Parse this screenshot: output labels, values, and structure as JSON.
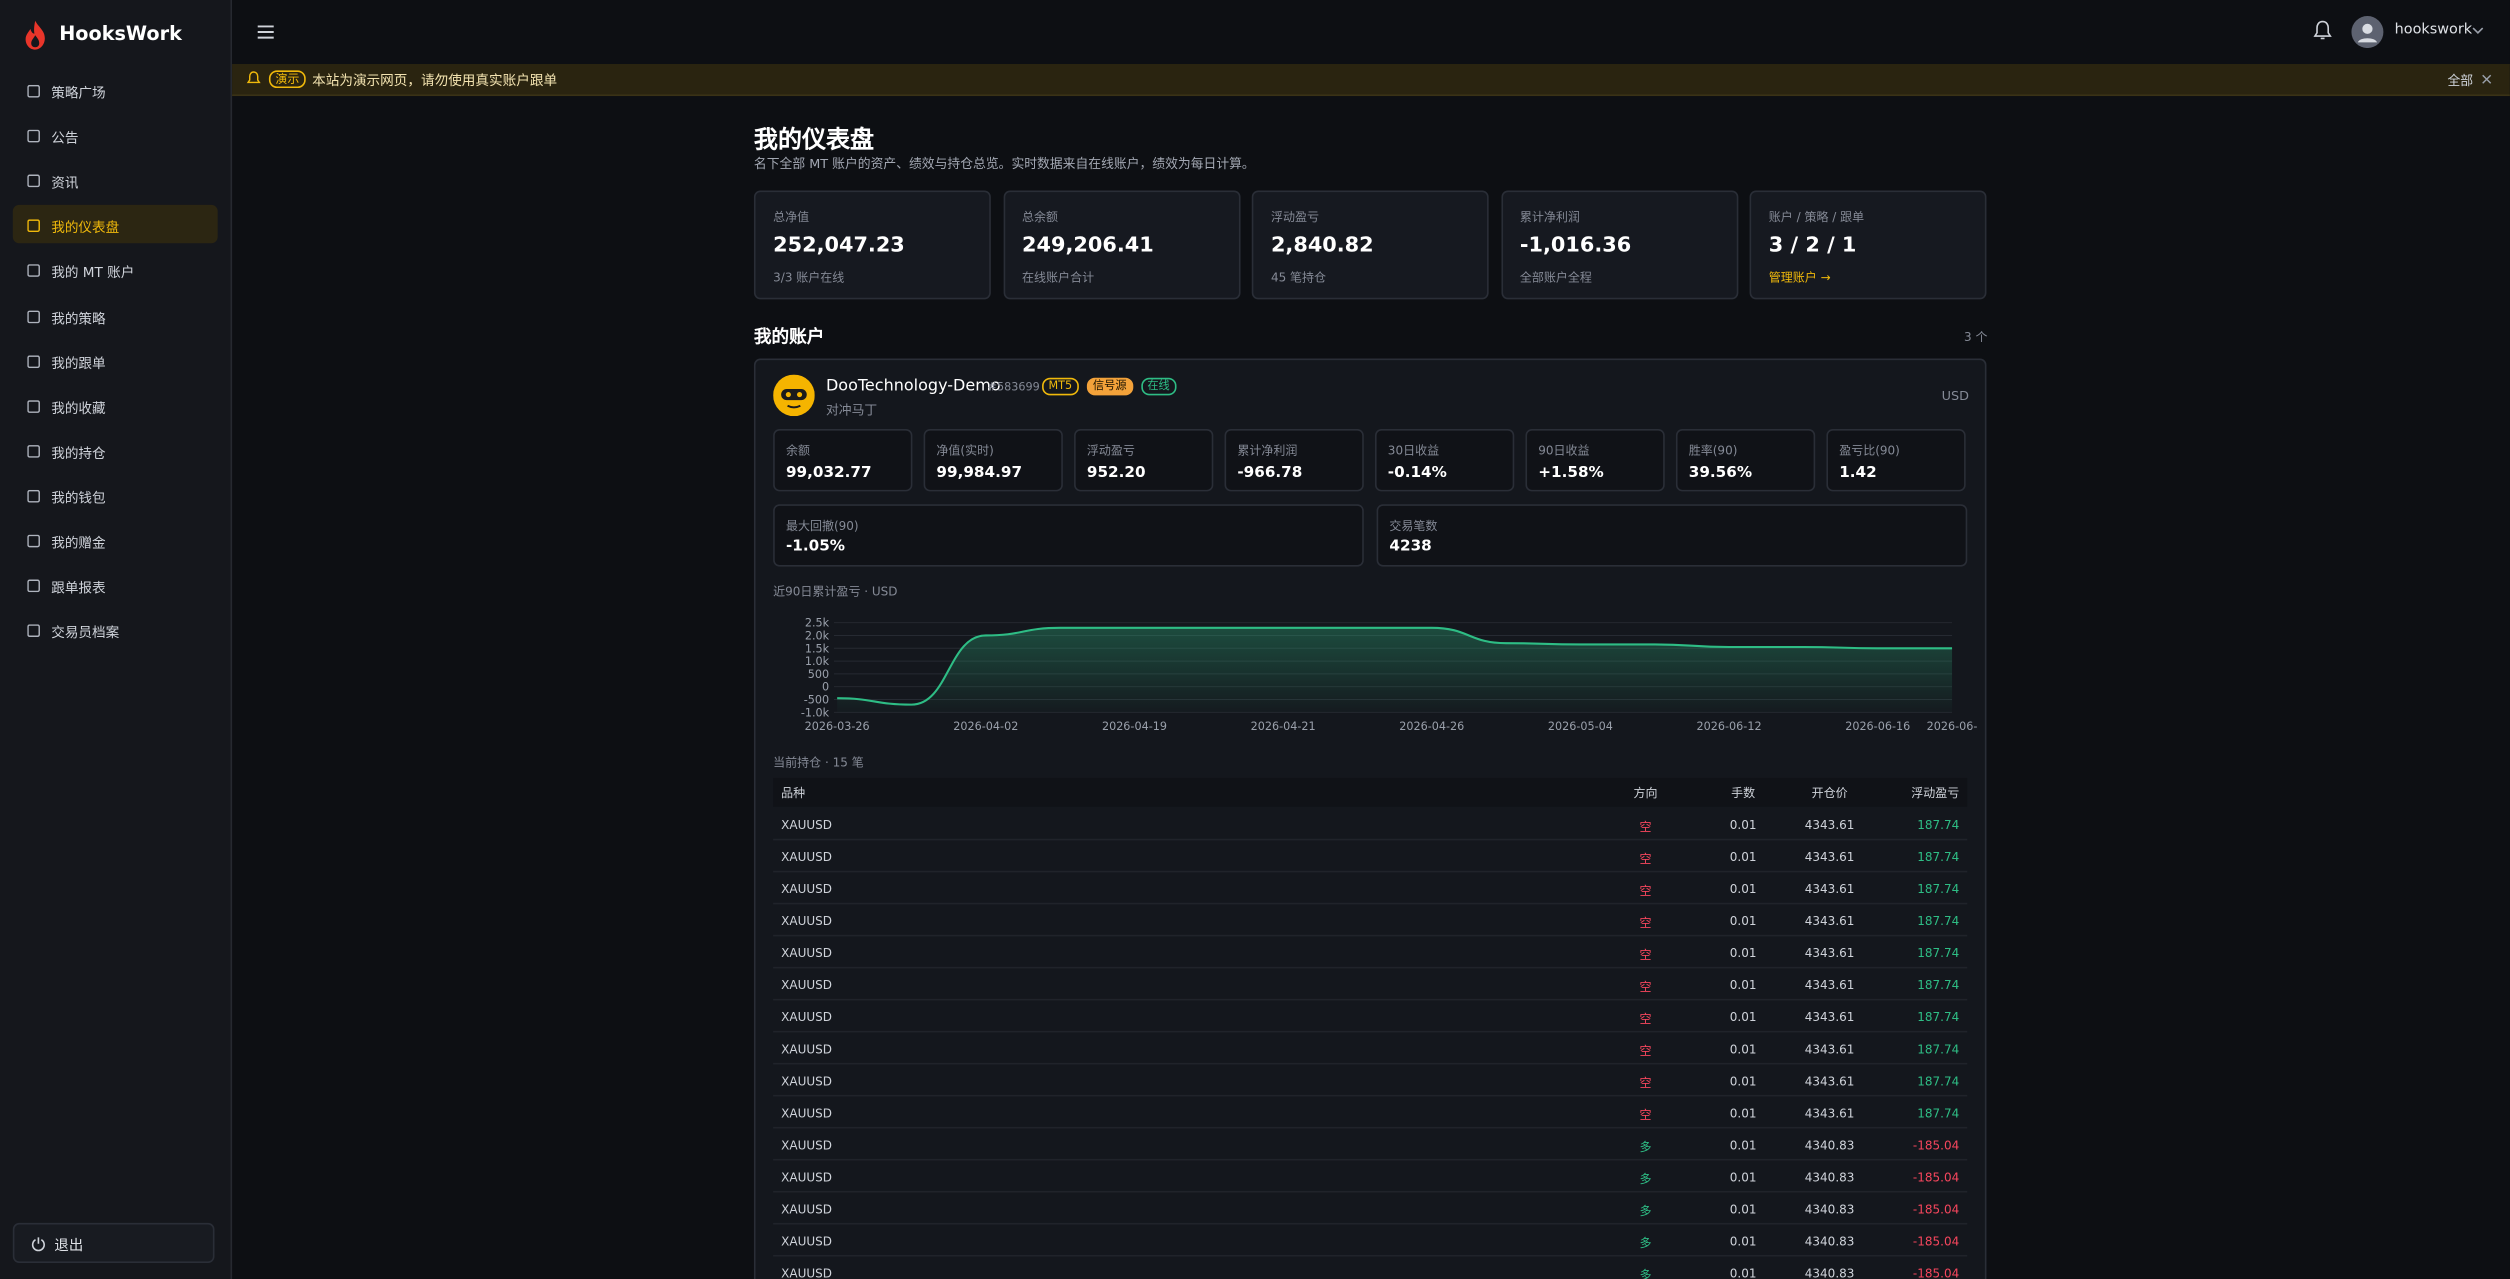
{
  "brand": "HooksWork",
  "nav": {
    "items": [
      "策略广场",
      "公告",
      "资讯",
      "我的仪表盘",
      "我的 MT 账户",
      "我的策略",
      "我的跟单",
      "我的收藏",
      "我的持仓",
      "我的钱包",
      "我的赠金",
      "跟单报表",
      "交易员档案"
    ],
    "active": 3
  },
  "logout": "退出",
  "user": "hookswork",
  "banner": {
    "tag": "演示",
    "text": "本站为演示网页，请勿使用真实账户跟单",
    "all": "全部"
  },
  "page": {
    "title": "我的仪表盘",
    "subtitle": "名下全部 MT 账户的资产、绩效与持仓总览。实时数据来自在线账户，绩效为每日计算。"
  },
  "stats": [
    {
      "label": "总净值",
      "value": "252,047.23",
      "note": "3/3 账户在线",
      "tone": "plain"
    },
    {
      "label": "总余额",
      "value": "249,206.41",
      "note": "在线账户合计",
      "tone": "plain"
    },
    {
      "label": "浮动盈亏",
      "value": "2,840.82",
      "note": "45 笔持仓",
      "tone": "green"
    },
    {
      "label": "累计净利润",
      "value": "-1,016.36",
      "note": "全部账户全程",
      "tone": "red"
    },
    {
      "label": "账户 / 策略 / 跟单",
      "value": "3 / 2 / 1",
      "note": "管理账户 →",
      "tone": "plain",
      "note_tone": "link"
    }
  ],
  "accounts": {
    "title": "我的账户",
    "count": "3 个"
  },
  "account": {
    "name": "DooTechnology-Demo",
    "id": "#583699",
    "tags": [
      {
        "text": "MT5",
        "style": "outline-yellow"
      },
      {
        "text": "信号源",
        "style": "solid-orange"
      },
      {
        "text": "在线",
        "style": "outline-green"
      }
    ],
    "strategy": "对冲马丁",
    "currency": "USD",
    "metrics": [
      {
        "label": "余额",
        "value": "99,032.77",
        "tone": "plain"
      },
      {
        "label": "净值(实时)",
        "value": "99,984.97",
        "tone": "plain"
      },
      {
        "label": "浮动盈亏",
        "value": "952.20",
        "tone": "green"
      },
      {
        "label": "累计净利润",
        "value": "-966.78",
        "tone": "red"
      },
      {
        "label": "30日收益",
        "value": "-0.14%",
        "tone": "red"
      },
      {
        "label": "90日收益",
        "value": "+1.58%",
        "tone": "green"
      },
      {
        "label": "胜率(90)",
        "value": "39.56%",
        "tone": "plain"
      },
      {
        "label": "盈亏比(90)",
        "value": "1.42",
        "tone": "plain"
      }
    ],
    "metrics_wide": [
      {
        "label": "最大回撤(90)",
        "value": "-1.05%",
        "tone": "red"
      },
      {
        "label": "交易笔数",
        "value": "4238",
        "tone": "plain"
      }
    ]
  },
  "chart_data": {
    "type": "area-line",
    "title": "近90日累计盈亏 · USD",
    "categories": [
      "2026-03-26",
      null,
      "2026-04-02",
      null,
      "2026-04-19",
      null,
      "2026-04-21",
      null,
      "2026-04-26",
      null,
      "2026-05-04",
      null,
      "2026-06-12",
      null,
      "2026-06-16",
      "2026-06-"
    ],
    "values": [
      -450,
      -700,
      2000,
      2300,
      2300,
      2300,
      2300,
      2300,
      2300,
      1700,
      1650,
      1650,
      1550,
      1550,
      1500,
      1500
    ],
    "color": "#2ebd85",
    "ylim": [
      -1000,
      2500
    ],
    "yticks": [
      {
        "value": 2500,
        "label": "2.5k"
      },
      {
        "value": 2000,
        "label": "2.0k"
      },
      {
        "value": 1500,
        "label": "1.5k"
      },
      {
        "value": 1000,
        "label": "1.0k"
      },
      500,
      0,
      -500,
      {
        "value": -1000,
        "label": "-1.0k"
      }
    ],
    "grid": true
  },
  "positions": {
    "title": "当前持仓 · 15 笔",
    "columns": [
      "品种",
      "方向",
      "手数",
      "开仓价",
      "浮动盈亏"
    ],
    "rows": [
      [
        "XAUUSD",
        "空",
        "0.01",
        "4343.61",
        "187.74"
      ],
      [
        "XAUUSD",
        "空",
        "0.01",
        "4343.61",
        "187.74"
      ],
      [
        "XAUUSD",
        "空",
        "0.01",
        "4343.61",
        "187.74"
      ],
      [
        "XAUUSD",
        "空",
        "0.01",
        "4343.61",
        "187.74"
      ],
      [
        "XAUUSD",
        "空",
        "0.01",
        "4343.61",
        "187.74"
      ],
      [
        "XAUUSD",
        "空",
        "0.01",
        "4343.61",
        "187.74"
      ],
      [
        "XAUUSD",
        "空",
        "0.01",
        "4343.61",
        "187.74"
      ],
      [
        "XAUUSD",
        "空",
        "0.01",
        "4343.61",
        "187.74"
      ],
      [
        "XAUUSD",
        "空",
        "0.01",
        "4343.61",
        "187.74"
      ],
      [
        "XAUUSD",
        "空",
        "0.01",
        "4343.61",
        "187.74"
      ],
      [
        "XAUUSD",
        "多",
        "0.01",
        "4340.83",
        "-185.04"
      ],
      [
        "XAUUSD",
        "多",
        "0.01",
        "4340.83",
        "-185.04"
      ],
      [
        "XAUUSD",
        "多",
        "0.01",
        "4340.83",
        "-185.04"
      ],
      [
        "XAUUSD",
        "多",
        "0.01",
        "4340.83",
        "-185.04"
      ],
      [
        "XAUUSD",
        "多",
        "0.01",
        "4340.83",
        "-185.04"
      ]
    ]
  }
}
